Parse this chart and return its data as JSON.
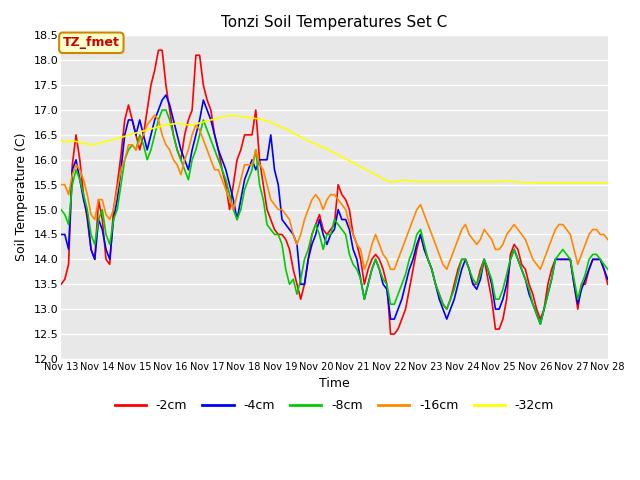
{
  "title": "Tonzi Soil Temperatures Set C",
  "xlabel": "Time",
  "ylabel": "Soil Temperature (C)",
  "ylim": [
    12.0,
    18.5
  ],
  "annotation_label": "TZ_fmet",
  "annotation_color": "#cc0000",
  "annotation_bg": "#ffffcc",
  "annotation_border": "#cc8800",
  "legend_labels": [
    "-2cm",
    "-4cm",
    "-8cm",
    "-16cm",
    "-32cm"
  ],
  "legend_colors": [
    "#ff0000",
    "#0000ff",
    "#00cc00",
    "#ff8800",
    "#ffff00"
  ],
  "line_width": 1.2,
  "tick_labels": [
    "Nov 13",
    "Nov 14",
    "Nov 15",
    "Nov 16",
    "Nov 17",
    "Nov 18",
    "Nov 19",
    "Nov 20",
    "Nov 21",
    "Nov 22",
    "Nov 23",
    "Nov 24",
    "Nov 25",
    "Nov 26",
    "Nov 27",
    "Nov 28"
  ],
  "series_2cm": [
    13.5,
    13.6,
    13.9,
    15.9,
    16.5,
    16.0,
    15.3,
    14.8,
    14.2,
    14.0,
    15.2,
    14.8,
    14.0,
    13.9,
    15.0,
    15.5,
    16.1,
    16.8,
    17.1,
    16.8,
    16.5,
    16.2,
    16.5,
    17.0,
    17.5,
    17.8,
    18.2,
    18.2,
    17.5,
    17.0,
    16.5,
    16.2,
    16.0,
    16.5,
    16.8,
    17.0,
    18.1,
    18.1,
    17.5,
    17.2,
    17.0,
    16.5,
    16.2,
    15.8,
    15.5,
    15.0,
    15.5,
    16.0,
    16.2,
    16.5,
    16.5,
    16.5,
    17.0,
    16.0,
    15.5,
    15.0,
    14.8,
    14.6,
    14.5,
    14.5,
    14.4,
    14.2,
    13.8,
    13.5,
    13.2,
    13.5,
    14.0,
    14.5,
    14.7,
    14.9,
    14.6,
    14.5,
    14.6,
    14.7,
    15.5,
    15.3,
    15.2,
    15.0,
    14.5,
    14.3,
    14.0,
    13.5,
    13.8,
    14.0,
    14.1,
    14.0,
    13.8,
    13.5,
    12.5,
    12.5,
    12.6,
    12.8,
    13.0,
    13.4,
    13.8,
    14.2,
    14.5,
    14.2,
    14.0,
    13.8,
    13.5,
    13.3,
    13.1,
    13.0,
    13.2,
    13.5,
    13.8,
    14.0,
    14.0,
    13.8,
    13.5,
    13.5,
    13.8,
    14.0,
    13.6,
    13.2,
    12.6,
    12.6,
    12.8,
    13.2,
    14.1,
    14.3,
    14.2,
    13.9,
    13.8,
    13.5,
    13.3,
    13.0,
    12.8,
    13.0,
    13.5,
    13.8,
    14.0,
    14.0,
    14.0,
    14.0,
    14.0,
    13.5,
    13.0,
    13.5,
    13.5,
    13.8,
    14.0,
    14.0,
    14.0,
    13.8,
    13.5
  ],
  "series_4cm": [
    14.5,
    14.5,
    14.2,
    15.8,
    16.0,
    15.6,
    15.2,
    14.9,
    14.2,
    14.0,
    14.8,
    14.6,
    14.2,
    14.0,
    14.8,
    15.2,
    15.8,
    16.5,
    16.8,
    16.8,
    16.5,
    16.8,
    16.5,
    16.2,
    16.5,
    16.8,
    17.0,
    17.2,
    17.3,
    17.1,
    16.8,
    16.5,
    16.2,
    16.0,
    15.8,
    16.2,
    16.5,
    16.8,
    17.2,
    17.0,
    16.8,
    16.5,
    16.2,
    16.0,
    15.8,
    15.5,
    15.2,
    14.8,
    15.2,
    15.6,
    15.8,
    16.0,
    15.8,
    16.0,
    16.0,
    16.0,
    16.5,
    15.8,
    15.5,
    14.8,
    14.7,
    14.6,
    14.5,
    14.3,
    13.5,
    13.5,
    14.0,
    14.3,
    14.5,
    14.8,
    14.5,
    14.3,
    14.5,
    14.6,
    15.0,
    14.8,
    14.8,
    14.6,
    14.2,
    14.0,
    13.6,
    13.2,
    13.5,
    13.8,
    14.0,
    13.8,
    13.5,
    13.4,
    12.8,
    12.8,
    13.0,
    13.2,
    13.5,
    13.8,
    14.0,
    14.3,
    14.5,
    14.2,
    14.0,
    13.8,
    13.5,
    13.2,
    13.0,
    12.8,
    13.0,
    13.2,
    13.5,
    13.8,
    14.0,
    13.8,
    13.5,
    13.4,
    13.6,
    14.0,
    13.8,
    13.5,
    13.0,
    13.0,
    13.2,
    13.5,
    14.0,
    14.2,
    14.0,
    13.8,
    13.6,
    13.3,
    13.1,
    12.9,
    12.7,
    13.0,
    13.3,
    13.6,
    14.0,
    14.0,
    14.0,
    14.0,
    14.0,
    13.5,
    13.1,
    13.4,
    13.6,
    13.8,
    14.0,
    14.0,
    14.0,
    13.8,
    13.6
  ],
  "series_8cm": [
    15.0,
    14.9,
    14.7,
    15.5,
    15.8,
    15.6,
    15.3,
    15.0,
    14.5,
    14.3,
    14.8,
    15.0,
    14.5,
    14.3,
    14.8,
    15.0,
    15.5,
    16.0,
    16.2,
    16.3,
    16.2,
    16.5,
    16.3,
    16.0,
    16.2,
    16.5,
    16.8,
    17.0,
    17.0,
    16.8,
    16.5,
    16.2,
    16.0,
    15.8,
    15.6,
    16.0,
    16.2,
    16.5,
    16.8,
    16.6,
    16.4,
    16.2,
    16.0,
    15.8,
    15.6,
    15.3,
    15.0,
    14.8,
    15.0,
    15.4,
    15.6,
    15.8,
    16.2,
    15.5,
    15.2,
    14.7,
    14.6,
    14.5,
    14.5,
    14.3,
    13.8,
    13.5,
    13.6,
    13.3,
    13.6,
    14.0,
    14.2,
    14.5,
    14.7,
    14.5,
    14.2,
    14.5,
    14.5,
    14.8,
    14.7,
    14.6,
    14.5,
    14.1,
    13.9,
    13.8,
    13.6,
    13.2,
    13.5,
    13.8,
    14.0,
    13.8,
    13.6,
    13.5,
    13.1,
    13.1,
    13.3,
    13.5,
    13.7,
    14.0,
    14.2,
    14.5,
    14.6,
    14.3,
    14.0,
    13.8,
    13.5,
    13.3,
    13.1,
    13.0,
    13.2,
    13.4,
    13.7,
    14.0,
    14.0,
    13.8,
    13.6,
    13.5,
    13.7,
    14.0,
    13.8,
    13.6,
    13.2,
    13.2,
    13.4,
    13.7,
    14.0,
    14.2,
    14.0,
    13.8,
    13.6,
    13.4,
    13.1,
    12.9,
    12.7,
    13.0,
    13.3,
    13.6,
    14.0,
    14.1,
    14.2,
    14.1,
    14.0,
    13.6,
    13.2,
    13.5,
    13.7,
    14.0,
    14.1,
    14.1,
    14.0,
    13.9,
    13.8
  ],
  "series_16cm": [
    15.5,
    15.5,
    15.3,
    15.7,
    15.9,
    15.8,
    15.6,
    15.3,
    14.9,
    14.8,
    15.2,
    15.2,
    14.9,
    14.8,
    15.0,
    15.4,
    15.8,
    16.0,
    16.3,
    16.3,
    16.2,
    16.4,
    16.5,
    16.7,
    16.8,
    16.9,
    16.8,
    16.5,
    16.3,
    16.2,
    16.0,
    15.9,
    15.7,
    16.0,
    16.2,
    16.5,
    16.7,
    16.6,
    16.4,
    16.2,
    16.0,
    15.8,
    15.8,
    15.6,
    15.4,
    15.2,
    15.0,
    15.3,
    15.6,
    15.9,
    15.9,
    15.9,
    16.2,
    15.9,
    15.8,
    15.5,
    15.2,
    15.1,
    15.0,
    15.0,
    14.9,
    14.8,
    14.5,
    14.3,
    14.5,
    14.8,
    15.0,
    15.2,
    15.3,
    15.2,
    15.0,
    15.2,
    15.3,
    15.3,
    15.2,
    15.1,
    15.0,
    14.7,
    14.5,
    14.3,
    14.2,
    13.8,
    14.0,
    14.3,
    14.5,
    14.3,
    14.1,
    14.0,
    13.8,
    13.8,
    14.0,
    14.2,
    14.4,
    14.6,
    14.8,
    15.0,
    15.1,
    14.9,
    14.7,
    14.5,
    14.3,
    14.1,
    13.9,
    13.8,
    14.0,
    14.2,
    14.4,
    14.6,
    14.7,
    14.5,
    14.4,
    14.3,
    14.4,
    14.6,
    14.5,
    14.4,
    14.2,
    14.2,
    14.3,
    14.5,
    14.6,
    14.7,
    14.6,
    14.5,
    14.4,
    14.2,
    14.0,
    13.9,
    13.8,
    14.0,
    14.2,
    14.4,
    14.6,
    14.7,
    14.7,
    14.6,
    14.5,
    14.2,
    13.9,
    14.1,
    14.3,
    14.5,
    14.6,
    14.6,
    14.5,
    14.5,
    14.4
  ],
  "series_32cm": [
    16.38,
    16.37,
    16.36,
    16.38,
    16.37,
    16.35,
    16.33,
    16.32,
    16.3,
    16.31,
    16.33,
    16.35,
    16.37,
    16.39,
    16.41,
    16.43,
    16.45,
    16.47,
    16.5,
    16.52,
    16.54,
    16.56,
    16.58,
    16.6,
    16.62,
    16.64,
    16.66,
    16.68,
    16.7,
    16.71,
    16.72,
    16.73,
    16.72,
    16.71,
    16.7,
    16.7,
    16.72,
    16.74,
    16.76,
    16.78,
    16.8,
    16.82,
    16.84,
    16.86,
    16.88,
    16.89,
    16.89,
    16.88,
    16.87,
    16.86,
    16.85,
    16.84,
    16.83,
    16.82,
    16.8,
    16.78,
    16.75,
    16.72,
    16.69,
    16.65,
    16.62,
    16.58,
    16.54,
    16.5,
    16.46,
    16.42,
    16.38,
    16.35,
    16.32,
    16.28,
    16.25,
    16.22,
    16.18,
    16.14,
    16.1,
    16.06,
    16.02,
    15.98,
    15.94,
    15.9,
    15.86,
    15.82,
    15.78,
    15.74,
    15.7,
    15.66,
    15.62,
    15.58,
    15.56,
    15.56,
    15.57,
    15.58,
    15.59,
    15.58,
    15.57,
    15.56,
    15.56,
    15.56,
    15.56,
    15.56,
    15.56,
    15.56,
    15.56,
    15.56,
    15.56,
    15.56,
    15.56,
    15.56,
    15.56,
    15.56,
    15.56,
    15.56,
    15.56,
    15.56,
    15.56,
    15.56,
    15.56,
    15.56,
    15.57,
    15.57,
    15.57,
    15.56,
    15.55,
    15.55,
    15.54,
    15.54,
    15.54,
    15.54,
    15.53,
    15.53,
    15.53,
    15.53,
    15.53,
    15.53,
    15.53,
    15.53,
    15.53,
    15.53,
    15.53,
    15.53,
    15.53,
    15.53,
    15.53,
    15.53,
    15.53,
    15.53,
    15.53
  ]
}
